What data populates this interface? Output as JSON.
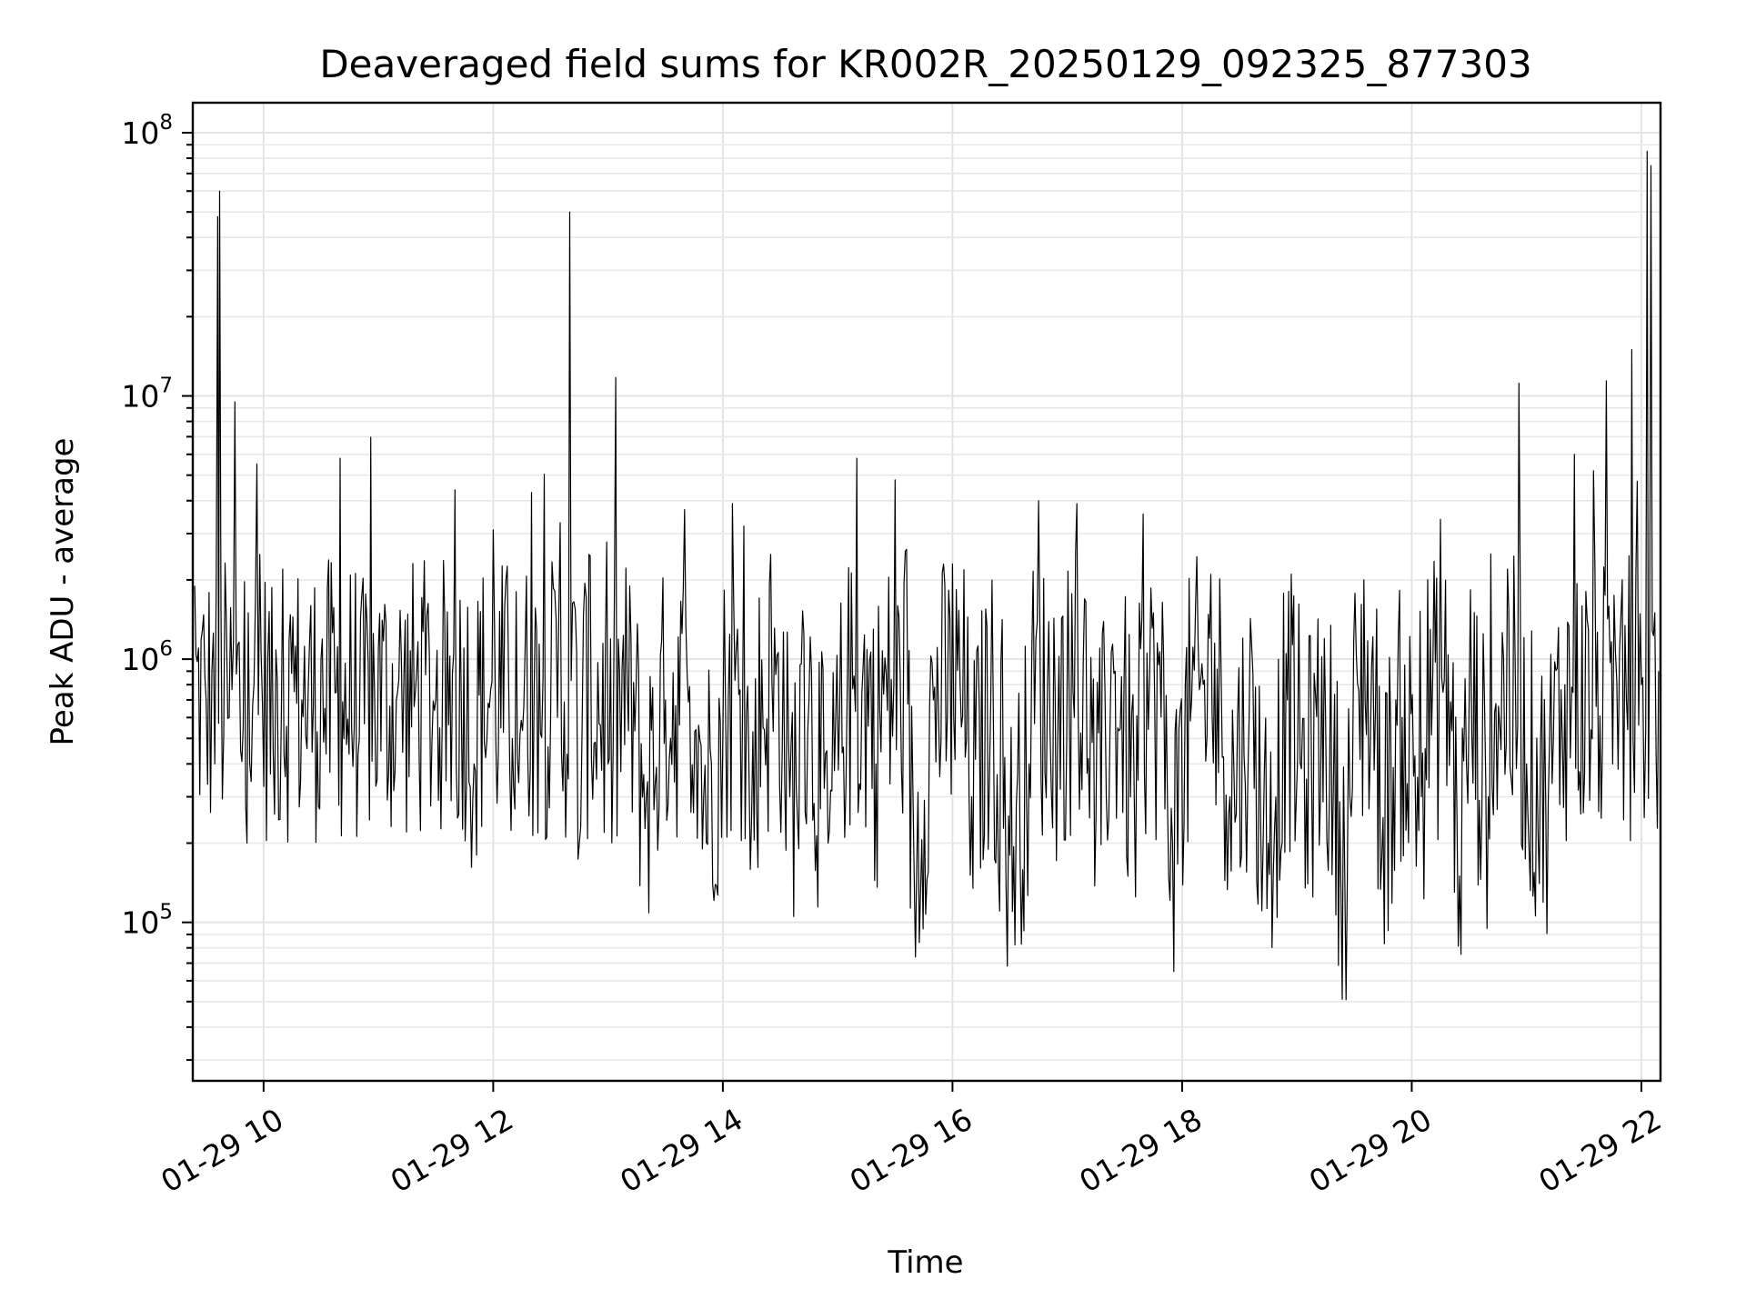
{
  "chart_data": {
    "type": "line",
    "title": "Deaveraged field sums for KR002R_20250129_092325_877303",
    "xlabel": "Time",
    "ylabel": "Peak ADU - average",
    "x_scale": "time",
    "y_scale": "log",
    "xlim": [
      "2025-01-29 09:23",
      "2025-01-29 22:10"
    ],
    "ylim": [
      25000,
      130000000
    ],
    "grid": true,
    "x_ticks": [
      "01-29 10",
      "01-29 12",
      "01-29 14",
      "01-29 16",
      "01-29 18",
      "01-29 20",
      "01-29 22"
    ],
    "y_ticks": [
      {
        "base": "10",
        "exp": "5",
        "value": 100000
      },
      {
        "base": "10",
        "exp": "6",
        "value": 1000000
      },
      {
        "base": "10",
        "exp": "7",
        "value": 10000000
      },
      {
        "base": "10",
        "exp": "8",
        "value": 100000000
      }
    ],
    "series": [
      {
        "color": "#000000",
        "x": [
          "2025-01-29 09:24",
          "2025-01-29 09:30",
          "2025-01-29 09:33",
          "2025-01-29 09:36",
          "2025-01-29 09:37",
          "2025-01-29 09:42",
          "2025-01-29 09:45",
          "2025-01-29 09:48",
          "2025-01-29 09:52",
          "2025-01-29 09:55",
          "2025-01-29 09:58",
          "2025-01-29 10:05",
          "2025-01-29 10:10",
          "2025-01-29 10:20",
          "2025-01-29 10:30",
          "2025-01-29 10:40",
          "2025-01-29 10:50",
          "2025-01-29 11:00",
          "2025-01-29 11:10",
          "2025-01-29 11:20",
          "2025-01-29 11:30",
          "2025-01-29 11:40",
          "2025-01-29 11:50",
          "2025-01-29 12:00",
          "2025-01-29 12:10",
          "2025-01-29 12:20",
          "2025-01-29 12:30",
          "2025-01-29 12:35",
          "2025-01-29 12:40",
          "2025-01-29 12:45",
          "2025-01-29 12:50",
          "2025-01-29 13:00",
          "2025-01-29 13:10",
          "2025-01-29 13:20",
          "2025-01-29 13:30",
          "2025-01-29 13:40",
          "2025-01-29 13:50",
          "2025-01-29 14:00",
          "2025-01-29 14:05",
          "2025-01-29 14:15",
          "2025-01-29 14:25",
          "2025-01-29 14:35",
          "2025-01-29 14:45",
          "2025-01-29 14:55",
          "2025-01-29 15:05",
          "2025-01-29 15:10",
          "2025-01-29 15:20",
          "2025-01-29 15:30",
          "2025-01-29 15:40",
          "2025-01-29 15:50",
          "2025-01-29 16:00",
          "2025-01-29 16:10",
          "2025-01-29 16:20",
          "2025-01-29 16:30",
          "2025-01-29 16:40",
          "2025-01-29 16:45",
          "2025-01-29 16:55",
          "2025-01-29 17:05",
          "2025-01-29 17:15",
          "2025-01-29 17:25",
          "2025-01-29 17:35",
          "2025-01-29 17:45",
          "2025-01-29 17:55",
          "2025-01-29 18:05",
          "2025-01-29 18:15",
          "2025-01-29 18:25",
          "2025-01-29 18:35",
          "2025-01-29 18:45",
          "2025-01-29 18:55",
          "2025-01-29 19:05",
          "2025-01-29 19:15",
          "2025-01-29 19:25",
          "2025-01-29 19:35",
          "2025-01-29 19:45",
          "2025-01-29 19:55",
          "2025-01-29 20:05",
          "2025-01-29 20:15",
          "2025-01-29 20:25",
          "2025-01-29 20:30",
          "2025-01-29 20:40",
          "2025-01-29 20:50",
          "2025-01-29 21:00",
          "2025-01-29 21:10",
          "2025-01-29 21:20",
          "2025-01-29 21:25",
          "2025-01-29 21:35",
          "2025-01-29 21:45",
          "2025-01-29 21:50",
          "2025-01-29 21:55",
          "2025-01-29 22:00",
          "2025-01-29 22:03",
          "2025-01-29 22:05",
          "2025-01-29 22:07",
          "2025-01-29 22:09"
        ],
        "y": [
          1900000,
          700000,
          900000,
          48000000,
          60000000,
          600000,
          9500000,
          450000,
          1500000,
          800000,
          2500000,
          450000,
          2200000,
          700000,
          1000000,
          5800000,
          500000,
          1100000,
          750000,
          900000,
          700000,
          4400000,
          400000,
          3100000,
          500000,
          4300000,
          600000,
          3300000,
          50000000,
          200000,
          2500000,
          400000,
          800000,
          300000,
          700000,
          3700000,
          300000,
          500000,
          3900000,
          250000,
          2500000,
          300000,
          700000,
          200000,
          800000,
          5800000,
          400000,
          4800000,
          150000,
          700000,
          2300000,
          300000,
          700000,
          180000,
          400000,
          4000000,
          500000,
          3900000,
          250000,
          900000,
          300000,
          1500000,
          200000,
          700000,
          2100000,
          300000,
          600000,
          200000,
          700000,
          350000,
          600000,
          150000,
          2000000,
          250000,
          600000,
          300000,
          3400000,
          150000,
          700000,
          300000,
          2200000,
          400000,
          300000,
          800000,
          6000000,
          5200000,
          400000,
          2000000,
          15000000,
          800000,
          85000000,
          75000000,
          1500000,
          900000
        ]
      }
    ]
  }
}
